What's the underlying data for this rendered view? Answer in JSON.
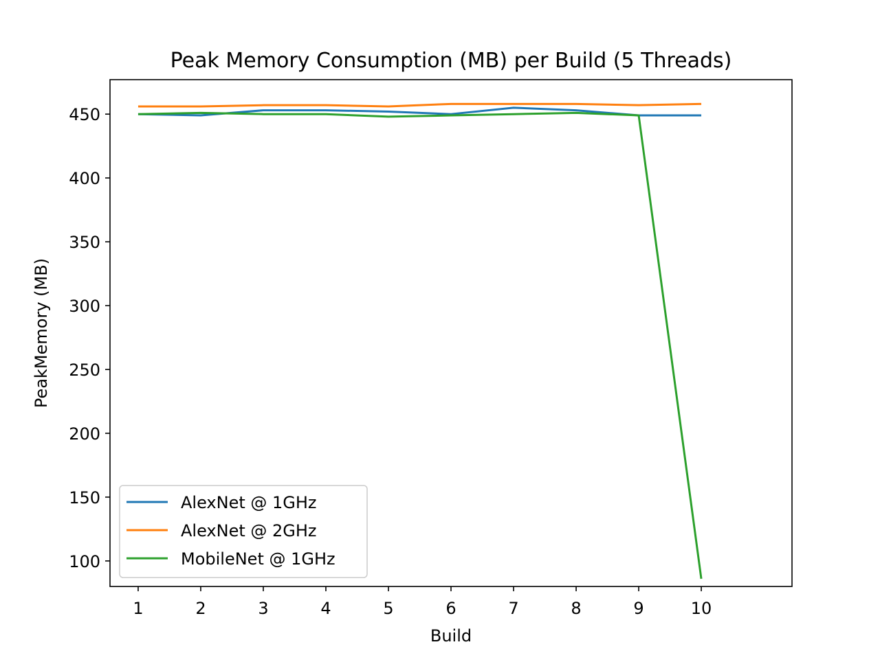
{
  "chart_data": {
    "type": "line",
    "title": "Peak Memory Consumption (MB) per Build (5 Threads)",
    "xlabel": "Build",
    "ylabel": "PeakMemory (MB)",
    "x": [
      1,
      2,
      3,
      4,
      5,
      6,
      7,
      8,
      9,
      10
    ],
    "x_ticks": [
      "1",
      "2",
      "3",
      "4",
      "5",
      "6",
      "7",
      "8",
      "9",
      "10"
    ],
    "y_ticks": [
      "100",
      "150",
      "200",
      "250",
      "300",
      "350",
      "400",
      "450"
    ],
    "xlim": [
      0.55,
      11.45
    ],
    "ylim": [
      80,
      477
    ],
    "grid": false,
    "legend_position": "lower-left",
    "series": [
      {
        "name": "AlexNet @ 1GHz",
        "color": "#1f77b4",
        "values": [
          450,
          449,
          453,
          453,
          452,
          450,
          455,
          453,
          449,
          449
        ]
      },
      {
        "name": "AlexNet @ 2GHz",
        "color": "#ff7f0e",
        "values": [
          456,
          456,
          457,
          457,
          456,
          458,
          458,
          458,
          457,
          458
        ]
      },
      {
        "name": "MobileNet @ 1GHz",
        "color": "#2ca02c",
        "values": [
          450,
          451,
          450,
          450,
          448,
          449,
          450,
          451,
          449,
          86
        ]
      }
    ]
  }
}
